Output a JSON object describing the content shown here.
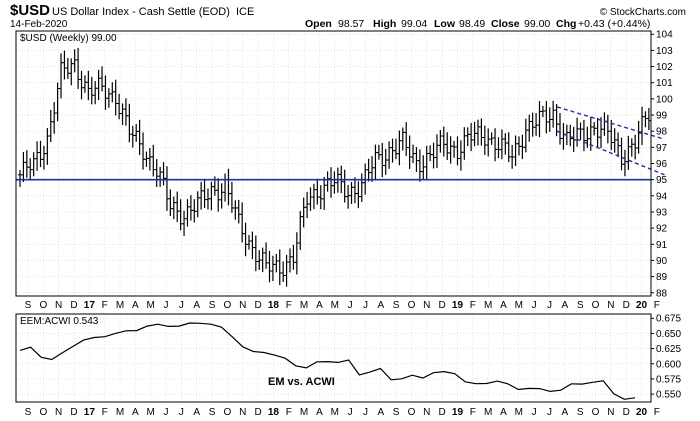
{
  "header": {
    "symbol": "$USD",
    "name": "US Dollar Index - Cash Settle (EOD)",
    "exchange": "ICE",
    "date": "14-Feb-2020",
    "watermark": "© StockCharts.com",
    "open_label": "Open",
    "open": "98.57",
    "high_label": "High",
    "high": "99.04",
    "low_label": "Low",
    "low": "98.49",
    "close_label": "Close",
    "close": "99.00",
    "chg_label": "Chg",
    "chg": "+0.43 (+0.44%)"
  },
  "colors": {
    "bars": "#000000",
    "support": "#1f2fa8",
    "channel": "#1f2fa8",
    "line": "#000000",
    "grid": "#c8c8c8"
  },
  "chart_data": [
    {
      "type": "ohlc",
      "legend": "$USD (Weekly) 99.00",
      "ylim": [
        87.8,
        104.2
      ],
      "y_ticks": [
        88,
        89,
        90,
        91,
        92,
        93,
        94,
        95,
        96,
        97,
        98,
        99,
        100,
        101,
        102,
        103,
        104
      ],
      "x_months": [
        "S",
        "O",
        "N",
        "D",
        "17",
        "F",
        "M",
        "A",
        "M",
        "J",
        "J",
        "A",
        "S",
        "O",
        "N",
        "D",
        "18",
        "F",
        "M",
        "A",
        "M",
        "J",
        "J",
        "A",
        "S",
        "O",
        "N",
        "D",
        "19",
        "F",
        "M",
        "A",
        "M",
        "J",
        "J",
        "A",
        "S",
        "O",
        "N",
        "D",
        "20",
        "F"
      ],
      "x_year_labels": [
        "17",
        "18",
        "19",
        "20"
      ],
      "horizontal_line": 95.0,
      "channel_upper": [
        [
          52,
          99.5
        ],
        [
          59,
          97.5
        ]
      ],
      "channel_lower": [
        [
          52,
          98.0
        ],
        [
          59,
          95.3
        ]
      ],
      "monthly_close": [
        95.3,
        95.9,
        97.6,
        101.5,
        102.2,
        100.4,
        100.6,
        100.2,
        97.9,
        96.9,
        95.6,
        93.3,
        92.9,
        93.4,
        94.4,
        94.5,
        92.3,
        90.8,
        89.5,
        89.6,
        90.2,
        93.8,
        94.5,
        94.8,
        94.3,
        94.6,
        96.2,
        96.8,
        97.2,
        96.1,
        96.4,
        97.2,
        96.9,
        97.6,
        97.8,
        97.1,
        96.4,
        98.2,
        98.6,
        99.1,
        97.4,
        97.7,
        98.3,
        97.8,
        96.5,
        97.3,
        99.0
      ]
    },
    {
      "type": "line",
      "legend": "EEM:ACWI 0.543",
      "ylim": [
        0.537,
        0.682
      ],
      "y_ticks": [
        0.55,
        0.575,
        0.6,
        0.625,
        0.65,
        0.675
      ],
      "y_tick_labels": [
        "0.550",
        "0.575",
        "0.600",
        "0.625",
        "0.650",
        "0.675"
      ],
      "annotation": "EM vs. ACWI",
      "monthly": [
        0.622,
        0.626,
        0.612,
        0.607,
        0.617,
        0.63,
        0.639,
        0.642,
        0.646,
        0.65,
        0.653,
        0.656,
        0.662,
        0.664,
        0.663,
        0.662,
        0.666,
        0.668,
        0.665,
        0.659,
        0.646,
        0.628,
        0.619,
        0.62,
        0.614,
        0.608,
        0.598,
        0.593,
        0.602,
        0.605,
        0.602,
        0.605,
        0.583,
        0.586,
        0.591,
        0.575,
        0.575,
        0.58,
        0.578,
        0.585,
        0.586,
        0.585,
        0.57,
        0.566,
        0.569,
        0.571,
        0.566,
        0.559,
        0.559,
        0.558,
        0.556,
        0.556,
        0.566,
        0.568,
        0.569,
        0.571,
        0.552,
        0.541,
        0.543
      ]
    }
  ]
}
